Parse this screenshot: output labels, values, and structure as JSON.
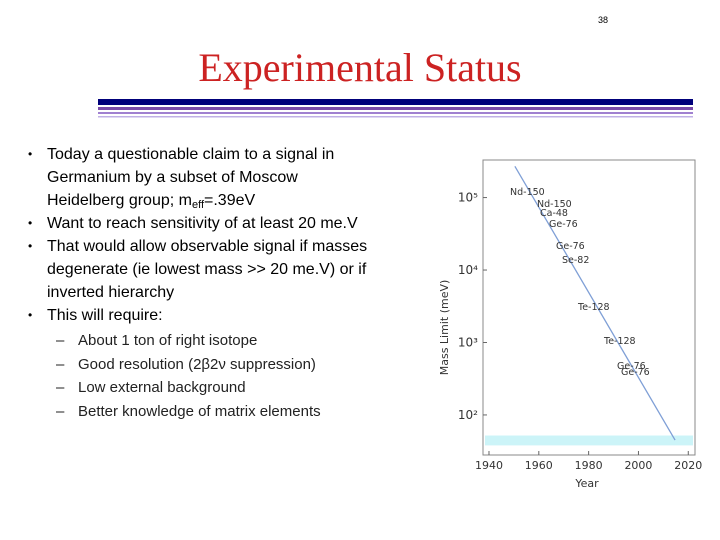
{
  "page_number": "38",
  "title": "Experimental Status",
  "bullets": [
    {
      "parts": [
        "Today a questionable claim to a signal in Germanium by a subset of Moscow Heidelberg group; m",
        "eff",
        "=.39eV"
      ]
    },
    {
      "parts": [
        "Want to reach sensitivity of at least 20 me.V"
      ]
    },
    {
      "parts": [
        "That would allow observable signal if masses degenerate (ie lowest mass >> 20 me.V) or if inverted hierarchy"
      ]
    },
    {
      "parts": [
        "This will require:"
      ],
      "sub": [
        "About 1 ton of right isotope",
        "Good resolution (2β2ν suppression)",
        "Low external background",
        "Better knowledge of matrix elements"
      ]
    }
  ],
  "chart_data": {
    "type": "line",
    "log_y": true,
    "x_label": "Year",
    "y_label": "Mass Limit (meV)",
    "xlim": [
      1937.6,
      2022.7
    ],
    "xticks": [
      1940,
      1960,
      1980,
      2000,
      2020
    ],
    "ylim": [
      28,
      330000
    ],
    "yticks": [
      {
        "value": 100,
        "label": "10²"
      },
      {
        "value": 1000,
        "label": "10³"
      },
      {
        "value": 10000,
        "label": "10⁴"
      },
      {
        "value": 100000,
        "label": "10⁵"
      }
    ],
    "series": [
      {
        "color": "#7f9fd6",
        "x": [
          1950.4,
          2014.7
        ],
        "values": [
          270000,
          45
        ]
      }
    ],
    "band": [
      38,
      52
    ],
    "band_color": "#ccf4f8",
    "annotations": [
      "Nd-150",
      "Nd-150",
      "Ca-48",
      "Ge-76",
      "Ge-76",
      "Se-82",
      "Te-128",
      "Te-128",
      "Ge-76",
      "Ge-76"
    ]
  }
}
